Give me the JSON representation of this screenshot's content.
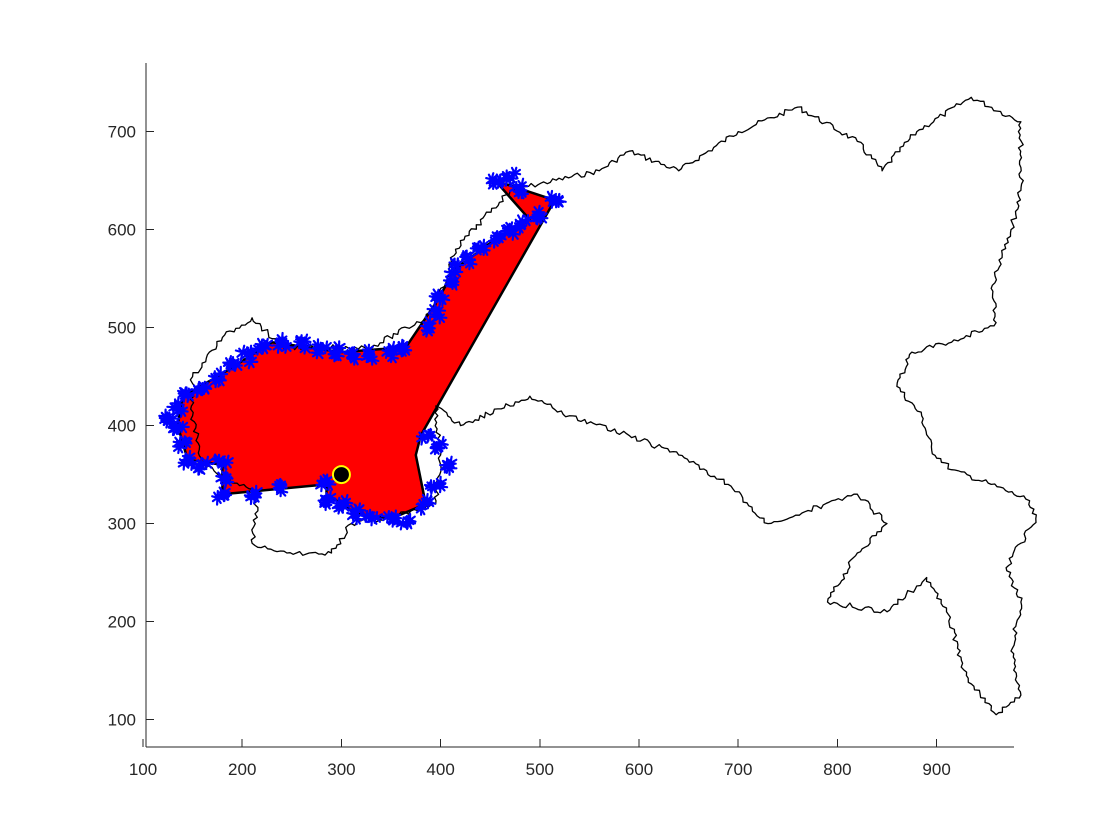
{
  "chart_data": {
    "type": "area",
    "title": "",
    "xlabel": "",
    "ylabel": "",
    "xlim": [
      103,
      978
    ],
    "ylim": [
      72,
      770
    ],
    "xticks": [
      100,
      200,
      300,
      400,
      500,
      600,
      700,
      800,
      900
    ],
    "yticks": [
      100,
      200,
      300,
      400,
      500,
      600,
      700
    ],
    "grid": false,
    "box": false,
    "colors": {
      "boundary": "#000000",
      "filled_region": "#ff0000",
      "frontier": "#0000ff",
      "marker_fill": "#000000",
      "marker_edge": "#ffff00",
      "axes": "#262626"
    },
    "series": [
      {
        "kind": "boundary-outline",
        "points": [
          [
            470,
            640
          ],
          [
            560,
            660
          ],
          [
            590,
            680
          ],
          [
            640,
            660
          ],
          [
            700,
            700
          ],
          [
            760,
            725
          ],
          [
            820,
            690
          ],
          [
            845,
            660
          ],
          [
            880,
            700
          ],
          [
            935,
            735
          ],
          [
            985,
            710
          ],
          [
            985,
            640
          ],
          [
            975,
            600
          ],
          [
            955,
            540
          ],
          [
            960,
            505
          ],
          [
            915,
            485
          ],
          [
            875,
            475
          ],
          [
            860,
            440
          ],
          [
            885,
            410
          ],
          [
            895,
            375
          ],
          [
            915,
            355
          ],
          [
            955,
            340
          ],
          [
            990,
            325
          ],
          [
            1000,
            305
          ],
          [
            985,
            280
          ],
          [
            970,
            255
          ],
          [
            985,
            220
          ],
          [
            975,
            170
          ],
          [
            985,
            125
          ],
          [
            960,
            105
          ],
          [
            930,
            145
          ],
          [
            910,
            210
          ],
          [
            890,
            245
          ],
          [
            850,
            210
          ],
          [
            790,
            220
          ],
          [
            820,
            270
          ],
          [
            850,
            300
          ],
          [
            820,
            330
          ],
          [
            730,
            300
          ],
          [
            690,
            340
          ],
          [
            640,
            370
          ],
          [
            590,
            390
          ],
          [
            530,
            410
          ],
          [
            490,
            430
          ],
          [
            420,
            400
          ],
          [
            395,
            420
          ],
          [
            400,
            370
          ],
          [
            395,
            320
          ],
          [
            345,
            305
          ],
          [
            310,
            300
          ],
          [
            290,
            270
          ],
          [
            245,
            270
          ],
          [
            210,
            280
          ],
          [
            215,
            330
          ],
          [
            160,
            360
          ],
          [
            150,
            410
          ],
          [
            150,
            450
          ],
          [
            180,
            490
          ],
          [
            210,
            510
          ],
          [
            240,
            480
          ],
          [
            330,
            480
          ],
          [
            385,
            510
          ],
          [
            405,
            545
          ],
          [
            415,
            580
          ],
          [
            470,
            640
          ]
        ]
      },
      {
        "kind": "filled-region",
        "points": [
          [
            455,
            650
          ],
          [
            515,
            630
          ],
          [
            380,
            390
          ],
          [
            375,
            370
          ],
          [
            385,
            320
          ],
          [
            350,
            305
          ],
          [
            315,
            310
          ],
          [
            285,
            330
          ],
          [
            285,
            340
          ],
          [
            180,
            330
          ],
          [
            180,
            360
          ],
          [
            145,
            365
          ],
          [
            135,
            400
          ],
          [
            140,
            430
          ],
          [
            175,
            450
          ],
          [
            230,
            485
          ],
          [
            300,
            475
          ],
          [
            365,
            480
          ],
          [
            395,
            525
          ],
          [
            415,
            560
          ],
          [
            455,
            590
          ],
          [
            490,
            610
          ],
          [
            455,
            650
          ]
        ]
      },
      {
        "kind": "frontier-markers",
        "points": [
          [
            455,
            650
          ],
          [
            470,
            655
          ],
          [
            480,
            640
          ],
          [
            515,
            630
          ],
          [
            500,
            615
          ],
          [
            485,
            605
          ],
          [
            470,
            598
          ],
          [
            455,
            590
          ],
          [
            440,
            582
          ],
          [
            425,
            570
          ],
          [
            415,
            560
          ],
          [
            408,
            545
          ],
          [
            400,
            530
          ],
          [
            395,
            515
          ],
          [
            385,
            500
          ],
          [
            365,
            480
          ],
          [
            350,
            475
          ],
          [
            330,
            472
          ],
          [
            310,
            470
          ],
          [
            295,
            475
          ],
          [
            280,
            478
          ],
          [
            260,
            482
          ],
          [
            240,
            484
          ],
          [
            220,
            480
          ],
          [
            205,
            470
          ],
          [
            190,
            460
          ],
          [
            175,
            450
          ],
          [
            160,
            440
          ],
          [
            145,
            432
          ],
          [
            135,
            420
          ],
          [
            125,
            405
          ],
          [
            135,
            395
          ],
          [
            140,
            380
          ],
          [
            145,
            365
          ],
          [
            160,
            360
          ],
          [
            180,
            360
          ],
          [
            185,
            345
          ],
          [
            180,
            330
          ],
          [
            210,
            330
          ],
          [
            240,
            335
          ],
          [
            285,
            340
          ],
          [
            285,
            325
          ],
          [
            300,
            318
          ],
          [
            315,
            310
          ],
          [
            330,
            308
          ],
          [
            350,
            305
          ],
          [
            365,
            303
          ],
          [
            385,
            320
          ],
          [
            395,
            340
          ],
          [
            405,
            360
          ],
          [
            400,
            380
          ],
          [
            385,
            390
          ]
        ]
      },
      {
        "kind": "start-point",
        "points": [
          [
            300,
            350
          ]
        ]
      }
    ]
  }
}
